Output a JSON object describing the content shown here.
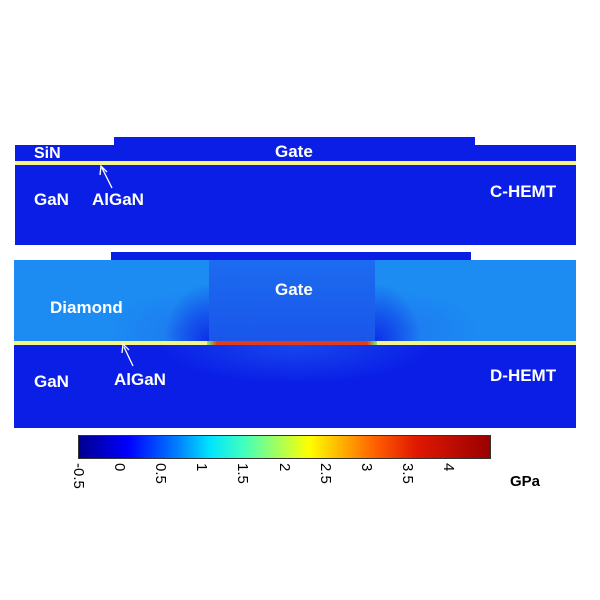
{
  "top_device": {
    "name": "C-HEMT",
    "labels": {
      "sin": "SiN",
      "gate": "Gate",
      "gan": "GaN",
      "algan": "AlGaN"
    }
  },
  "bottom_device": {
    "name": "D-HEMT",
    "labels": {
      "diamond": "Diamond",
      "gate": "Gate",
      "gan": "GaN",
      "algan": "AlGaN"
    }
  },
  "colorbar": {
    "ticks": [
      "-0.5",
      "0",
      "0.5",
      "1",
      "1.5",
      "2",
      "2.5",
      "3",
      "3.5",
      "4"
    ],
    "unit": "GPa",
    "range": [
      -0.5,
      4.5
    ]
  },
  "colors": {
    "substrate": "#0a1ee6",
    "diamond": "#1c8cf2",
    "algan_line": "#f5f58a",
    "high_stress": "#e03c1e"
  }
}
